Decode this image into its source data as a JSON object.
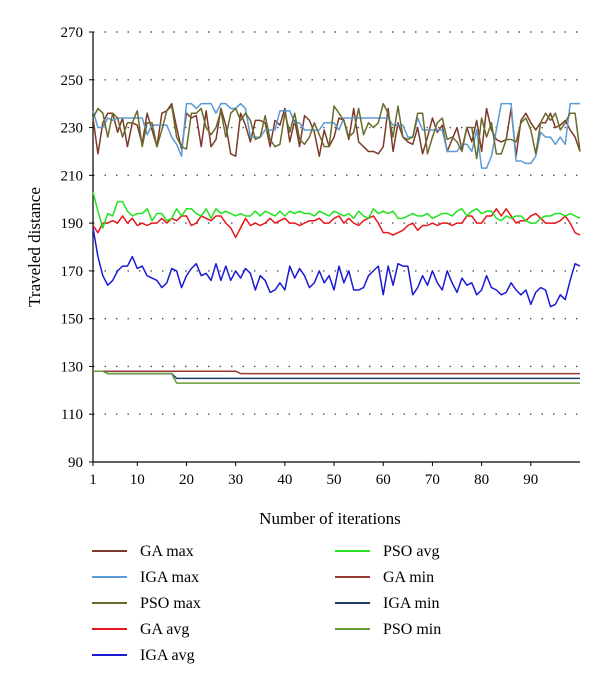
{
  "chart_data": {
    "type": "line",
    "xlabel": "Number of iterations",
    "ylabel": "Traveled distance",
    "xlim": [
      1,
      100
    ],
    "ylim": [
      90,
      270
    ],
    "x_ticks": [
      1,
      10,
      20,
      30,
      40,
      50,
      60,
      70,
      80,
      90
    ],
    "x_tick_labels": [
      "1",
      "10",
      "20",
      "30",
      "40",
      "50",
      "60",
      "70",
      "80",
      "90"
    ],
    "y_ticks": [
      90,
      110,
      130,
      150,
      170,
      190,
      210,
      230,
      250,
      270
    ],
    "y_tick_labels": [
      "90",
      "110",
      "130",
      "150",
      "170",
      "190",
      "210",
      "230",
      "250",
      "270"
    ],
    "grid": "dotted horizontal",
    "legend_position": "bottom",
    "x": [
      1,
      2,
      3,
      4,
      5,
      6,
      7,
      8,
      9,
      10,
      11,
      12,
      13,
      14,
      15,
      16,
      17,
      18,
      19,
      20,
      21,
      22,
      23,
      24,
      25,
      26,
      27,
      28,
      29,
      30,
      31,
      32,
      33,
      34,
      35,
      36,
      37,
      38,
      39,
      40,
      41,
      42,
      43,
      44,
      45,
      46,
      47,
      48,
      49,
      50,
      51,
      52,
      53,
      54,
      55,
      56,
      57,
      58,
      59,
      60,
      61,
      62,
      63,
      64,
      65,
      66,
      67,
      68,
      69,
      70,
      71,
      72,
      73,
      74,
      75,
      76,
      77,
      78,
      79,
      80,
      81,
      82,
      83,
      84,
      85,
      86,
      87,
      88,
      89,
      90,
      91,
      92,
      93,
      94,
      95,
      96,
      97,
      98,
      99,
      100
    ],
    "series": [
      {
        "name": "GA max",
        "color": "#7b3a2a",
        "values": [
          234,
          219,
          232,
          236,
          236,
          228,
          234,
          222,
          232,
          231,
          223,
          236,
          229,
          222,
          236,
          237,
          240,
          230,
          221,
          236,
          234,
          235,
          222,
          237,
          222,
          225,
          238,
          231,
          219,
          218,
          236,
          231,
          224,
          233,
          233,
          232,
          222,
          233,
          231,
          238,
          224,
          233,
          222,
          235,
          233,
          228,
          218,
          229,
          222,
          226,
          234,
          233,
          225,
          238,
          224,
          222,
          220,
          220,
          219,
          222,
          238,
          220,
          232,
          226,
          224,
          223,
          230,
          219,
          226,
          234,
          228,
          231,
          220,
          225,
          230,
          221,
          230,
          224,
          233,
          220,
          238,
          229,
          225,
          224,
          225,
          238,
          218,
          233,
          236,
          232,
          229,
          232,
          232,
          236,
          230,
          231,
          233,
          229,
          226,
          220
        ]
      },
      {
        "name": "IGA max",
        "color": "#5b9bd5",
        "values": [
          237,
          230,
          230,
          234,
          233,
          234,
          234,
          234,
          234,
          234,
          234,
          227,
          231,
          231,
          231,
          231,
          226,
          223,
          218,
          240,
          240,
          238,
          240,
          240,
          240,
          236,
          240,
          240,
          238,
          238,
          240,
          238,
          226,
          226,
          226,
          229,
          229,
          229,
          237,
          237,
          237,
          232,
          232,
          229,
          229,
          229,
          229,
          232,
          232,
          232,
          229,
          234,
          234,
          234,
          234,
          234,
          234,
          234,
          234,
          234,
          234,
          231,
          231,
          231,
          226,
          226,
          234,
          229,
          229,
          229,
          229,
          229,
          220,
          220,
          220,
          223,
          223,
          220,
          229,
          213,
          213,
          218,
          229,
          240,
          240,
          240,
          216,
          216,
          215,
          215,
          218,
          228,
          226,
          226,
          223,
          226,
          223,
          240,
          240,
          240
        ]
      },
      {
        "name": "PSO max",
        "color": "#6a6a2a",
        "values": [
          234,
          238,
          236,
          226,
          236,
          234,
          226,
          232,
          232,
          237,
          222,
          232,
          232,
          222,
          229,
          237,
          239,
          226,
          222,
          221,
          236,
          236,
          238,
          230,
          227,
          230,
          237,
          226,
          236,
          238,
          233,
          236,
          233,
          225,
          226,
          235,
          225,
          222,
          223,
          236,
          228,
          236,
          225,
          223,
          226,
          232,
          227,
          222,
          222,
          239,
          236,
          233,
          226,
          228,
          238,
          227,
          232,
          230,
          232,
          240,
          236,
          226,
          239,
          226,
          225,
          226,
          236,
          236,
          219,
          226,
          232,
          234,
          225,
          226,
          224,
          220,
          230,
          230,
          217,
          234,
          226,
          232,
          219,
          219,
          225,
          225,
          224,
          232,
          234,
          229,
          219,
          232,
          236,
          233,
          236,
          229,
          232,
          236,
          236,
          220
        ]
      },
      {
        "name": "GA avg",
        "color": "#e8161b",
        "values": [
          189,
          186,
          190,
          190,
          191,
          190,
          193,
          190,
          192,
          189,
          190,
          189,
          190,
          190,
          192,
          190,
          192,
          191,
          193,
          193,
          189,
          190,
          193,
          192,
          191,
          193,
          193,
          190,
          188,
          184,
          188,
          192,
          189,
          190,
          189,
          190,
          192,
          190,
          191,
          192,
          190,
          190,
          189,
          190,
          191,
          191,
          192,
          190,
          190,
          192,
          193,
          190,
          192,
          190,
          189,
          191,
          192,
          193,
          190,
          186,
          186,
          185,
          186,
          187,
          189,
          190,
          187,
          189,
          189,
          190,
          189,
          190,
          190,
          189,
          190,
          190,
          193,
          193,
          190,
          190,
          193,
          193,
          196,
          193,
          196,
          193,
          190,
          191,
          191,
          193,
          194,
          192,
          190,
          190,
          190,
          191,
          193,
          190,
          186,
          185
        ]
      },
      {
        "name": "IGA avg",
        "color": "#1a1ad6",
        "values": [
          188,
          176,
          168,
          164,
          166,
          170,
          172,
          172,
          176,
          171,
          172,
          168,
          167,
          166,
          163,
          165,
          171,
          170,
          163,
          168,
          171,
          173,
          168,
          169,
          166,
          173,
          166,
          172,
          166,
          170,
          167,
          171,
          169,
          162,
          168,
          166,
          161,
          162,
          165,
          162,
          172,
          167,
          171,
          168,
          163,
          165,
          170,
          165,
          168,
          162,
          172,
          165,
          170,
          162,
          162,
          163,
          168,
          170,
          172,
          160,
          172,
          164,
          173,
          172,
          172,
          160,
          163,
          168,
          164,
          170,
          165,
          162,
          170,
          165,
          161,
          167,
          164,
          165,
          160,
          162,
          168,
          163,
          162,
          160,
          161,
          165,
          162,
          160,
          162,
          156,
          161,
          163,
          162,
          155,
          156,
          160,
          158,
          166,
          173,
          172
        ]
      },
      {
        "name": "PSO avg",
        "color": "#22e222",
        "values": [
          203,
          195,
          188,
          194,
          193,
          199,
          199,
          195,
          193,
          194,
          194,
          196,
          191,
          194,
          194,
          191,
          192,
          196,
          193,
          196,
          196,
          194,
          193,
          196,
          192,
          196,
          194,
          195,
          194,
          193,
          194,
          193,
          193,
          195,
          193,
          195,
          194,
          193,
          195,
          193,
          195,
          194,
          195,
          194,
          194,
          193,
          195,
          194,
          193,
          195,
          194,
          193,
          194,
          192,
          195,
          193,
          192,
          196,
          194,
          195,
          194,
          195,
          192,
          192,
          193,
          194,
          193,
          193,
          194,
          192,
          193,
          194,
          194,
          193,
          195,
          196,
          193,
          195,
          196,
          194,
          195,
          195,
          192,
          191,
          193,
          192,
          193,
          193,
          191,
          190,
          190,
          192,
          193,
          193,
          194,
          194,
          193,
          194,
          193,
          192
        ]
      },
      {
        "name": "GA min",
        "color": "#9a3a32",
        "values": [
          128,
          128,
          128,
          128,
          128,
          128,
          128,
          128,
          128,
          128,
          128,
          128,
          128,
          128,
          128,
          128,
          128,
          128,
          128,
          128,
          128,
          128,
          128,
          128,
          128,
          128,
          128,
          128,
          128,
          128,
          127,
          127,
          127,
          127,
          127,
          127,
          127,
          127,
          127,
          127,
          127,
          127,
          127,
          127,
          127,
          127,
          127,
          127,
          127,
          127,
          127,
          127,
          127,
          127,
          127,
          127,
          127,
          127,
          127,
          127,
          127,
          127,
          127,
          127,
          127,
          127,
          127,
          127,
          127,
          127,
          127,
          127,
          127,
          127,
          127,
          127,
          127,
          127,
          127,
          127,
          127,
          127,
          127,
          127,
          127,
          127,
          127,
          127,
          127,
          127,
          127,
          127,
          127,
          127,
          127,
          127,
          127,
          127,
          127,
          127
        ]
      },
      {
        "name": "IGA min",
        "color": "#1f3f6a",
        "values": [
          128,
          128,
          128,
          127,
          127,
          127,
          127,
          127,
          127,
          127,
          127,
          127,
          127,
          127,
          127,
          127,
          127,
          125,
          125,
          125,
          125,
          125,
          125,
          125,
          125,
          125,
          125,
          125,
          125,
          125,
          125,
          125,
          125,
          125,
          125,
          125,
          125,
          125,
          125,
          125,
          125,
          125,
          125,
          125,
          125,
          125,
          125,
          125,
          125,
          125,
          125,
          125,
          125,
          125,
          125,
          125,
          125,
          125,
          125,
          125,
          125,
          125,
          125,
          125,
          125,
          125,
          125,
          125,
          125,
          125,
          125,
          125,
          125,
          125,
          125,
          125,
          125,
          125,
          125,
          125,
          125,
          125,
          125,
          125,
          125,
          125,
          125,
          125,
          125,
          125,
          125,
          125,
          125,
          125,
          125,
          125,
          125,
          125,
          125,
          125
        ]
      },
      {
        "name": "PSO min",
        "color": "#6a9a3a",
        "values": [
          128,
          128,
          128,
          127,
          127,
          127,
          127,
          127,
          127,
          127,
          127,
          127,
          127,
          127,
          127,
          127,
          127,
          123,
          123,
          123,
          123,
          123,
          123,
          123,
          123,
          123,
          123,
          123,
          123,
          123,
          123,
          123,
          123,
          123,
          123,
          123,
          123,
          123,
          123,
          123,
          123,
          123,
          123,
          123,
          123,
          123,
          123,
          123,
          123,
          123,
          123,
          123,
          123,
          123,
          123,
          123,
          123,
          123,
          123,
          123,
          123,
          123,
          123,
          123,
          123,
          123,
          123,
          123,
          123,
          123,
          123,
          123,
          123,
          123,
          123,
          123,
          123,
          123,
          123,
          123,
          123,
          123,
          123,
          123,
          123,
          123,
          123,
          123,
          123,
          123,
          123,
          123,
          123,
          123,
          123,
          123,
          123,
          123,
          123,
          123
        ]
      }
    ]
  }
}
